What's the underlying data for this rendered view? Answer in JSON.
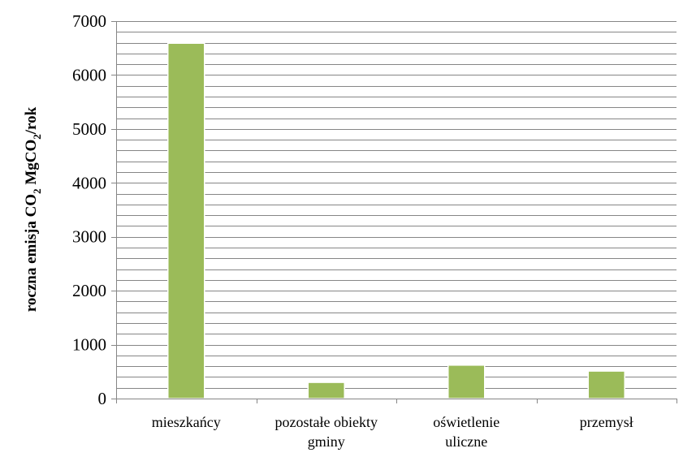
{
  "chart_data": {
    "type": "bar",
    "title": "",
    "xlabel": "",
    "ylabel": {
      "p1": "roczna emisja CO",
      "s1": "2",
      "p2": " MgCO",
      "s2": "2",
      "p3": "/rok"
    },
    "categories": [
      [
        "mieszkańcy"
      ],
      [
        "pozostałe obiekty",
        "gminy"
      ],
      [
        "oświetlenie",
        "uliczne"
      ],
      [
        "przemysł"
      ]
    ],
    "values": [
      6590,
      300,
      620,
      510
    ],
    "ylim": [
      0,
      7000
    ],
    "major_ticks": [
      0,
      1000,
      2000,
      3000,
      4000,
      5000,
      6000,
      7000
    ],
    "minor_step": 200,
    "grid": true,
    "legend": "none",
    "colors": {
      "bar": "#9bbb59",
      "bar_edge": "#ffffff",
      "grid": "#868686",
      "axis": "#868686"
    }
  }
}
